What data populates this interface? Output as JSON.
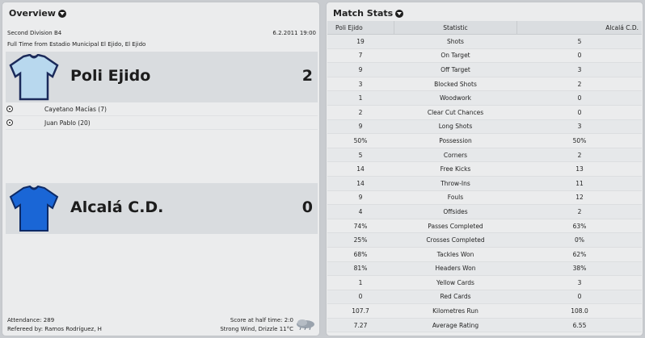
{
  "overview": {
    "title": "Overview",
    "competition": "Second Division B4",
    "date": "6.2.2011 19:00",
    "venue_line": "Full Time from Estadio Municipal El Ejido, El Ejido",
    "home": {
      "name": "Poli Ejido",
      "score": "2",
      "shirt_color": "#b8d8ee",
      "scorers": [
        "Cayetano Macías (7)",
        "Juan Pablo (20)"
      ]
    },
    "away": {
      "name": "Alcalá C.D.",
      "score": "0",
      "shirt_color": "#1a66d6"
    },
    "attendance": "Attendance: 289",
    "referee": "Refereed by: Ramos Rodríguez, H",
    "halftime": "Score at half time: 2:0",
    "weather": "Strong Wind, Drizzle 11°C"
  },
  "stats": {
    "title": "Match Stats",
    "headers": {
      "home": "Poli Ejido",
      "stat": "Statistic",
      "away": "Alcalá C.D."
    },
    "rows": [
      {
        "home": "19",
        "stat": "Shots",
        "away": "5"
      },
      {
        "home": "7",
        "stat": "On Target",
        "away": "0"
      },
      {
        "home": "9",
        "stat": "Off Target",
        "away": "3"
      },
      {
        "home": "3",
        "stat": "Blocked Shots",
        "away": "2"
      },
      {
        "home": "1",
        "stat": "Woodwork",
        "away": "0"
      },
      {
        "home": "2",
        "stat": "Clear Cut Chances",
        "away": "0"
      },
      {
        "home": "9",
        "stat": "Long Shots",
        "away": "3"
      },
      {
        "home": "50%",
        "stat": "Possession",
        "away": "50%"
      },
      {
        "home": "5",
        "stat": "Corners",
        "away": "2"
      },
      {
        "home": "14",
        "stat": "Free Kicks",
        "away": "13"
      },
      {
        "home": "14",
        "stat": "Throw-Ins",
        "away": "11"
      },
      {
        "home": "9",
        "stat": "Fouls",
        "away": "12"
      },
      {
        "home": "4",
        "stat": "Offsides",
        "away": "2"
      },
      {
        "home": "74%",
        "stat": "Passes Completed",
        "away": "63%"
      },
      {
        "home": "25%",
        "stat": "Crosses Completed",
        "away": "0%"
      },
      {
        "home": "68%",
        "stat": "Tackles Won",
        "away": "62%"
      },
      {
        "home": "81%",
        "stat": "Headers Won",
        "away": "38%"
      },
      {
        "home": "1",
        "stat": "Yellow Cards",
        "away": "3"
      },
      {
        "home": "0",
        "stat": "Red Cards",
        "away": "0"
      },
      {
        "home": "107.7",
        "stat": "Kilometres Run",
        "away": "108.0"
      },
      {
        "home": "7.27",
        "stat": "Average Rating",
        "away": "6.55"
      }
    ]
  }
}
